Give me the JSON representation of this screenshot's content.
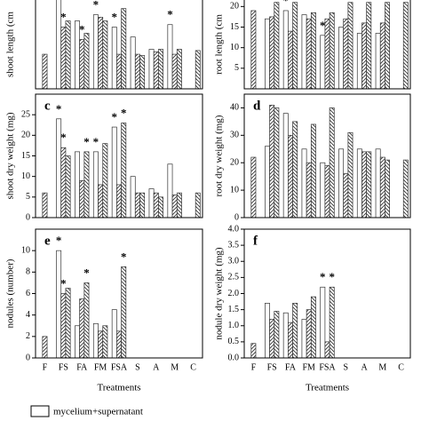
{
  "chart_data": [
    {
      "type": "bar",
      "y_label": "shoot length (cm",
      "ylim": [
        0,
        10
      ],
      "series": [
        {
          "name": "mycelium+supernatant",
          "pattern": "none",
          "values": [
            null,
            8,
            5.5,
            6,
            5,
            4.2,
            3.2,
            5.2,
            null
          ],
          "significance": [
            null,
            null,
            null,
            "*",
            "*",
            null,
            null,
            "*",
            null
          ]
        },
        {
          "pattern": "hatch-right",
          "values": [
            2.8,
            5,
            4,
            5.8,
            2.8,
            2.8,
            3,
            2.8,
            null
          ],
          "significance": [
            null,
            "*",
            "*",
            null,
            null,
            null,
            null,
            null,
            null
          ]
        },
        {
          "pattern": "hatch-left",
          "values": [
            null,
            5.5,
            4.5,
            5.5,
            6.5,
            2.7,
            3.2,
            3.2,
            3.1
          ],
          "significance": [
            null,
            null,
            null,
            null,
            null,
            null,
            null,
            null,
            null
          ]
        }
      ]
    },
    {
      "type": "bar",
      "y_label": "root length (cm",
      "ylim": [
        0,
        30
      ],
      "yticks": [
        5,
        10,
        15,
        20
      ],
      "series": [
        {
          "name": "mycelium+supernatant",
          "pattern": "none",
          "values": [
            null,
            17,
            19,
            18,
            13,
            15,
            13.5,
            13.5,
            null
          ],
          "significance": [
            null,
            null,
            "*",
            null,
            "*",
            null,
            null,
            null,
            null
          ]
        },
        {
          "pattern": "hatch-right",
          "values": [
            19,
            17.5,
            14,
            17,
            17,
            17,
            16,
            16,
            null
          ],
          "significance": [
            null,
            null,
            null,
            null,
            null,
            null,
            null,
            null,
            null
          ]
        },
        {
          "pattern": "hatch-left",
          "values": [
            null,
            21,
            21,
            18.5,
            18.5,
            21,
            21,
            21,
            21
          ],
          "significance": [
            null,
            null,
            null,
            null,
            null,
            null,
            null,
            null,
            null
          ]
        }
      ]
    },
    {
      "type": "bar",
      "panel": "c",
      "y_label": "shoot dry weight (mg)",
      "ylim": [
        0,
        30
      ],
      "yticks": [
        0,
        5,
        10,
        15,
        20,
        25
      ],
      "series": [
        {
          "name": "mycelium+supernatant",
          "pattern": "none",
          "values": [
            null,
            24,
            16,
            16,
            22,
            10,
            7,
            13,
            null
          ],
          "significance": [
            null,
            "*",
            null,
            "*",
            "*",
            null,
            null,
            null,
            null
          ]
        },
        {
          "pattern": "hatch-right",
          "values": [
            6,
            17,
            9,
            8,
            8,
            6,
            6,
            5.5,
            null
          ],
          "significance": [
            null,
            "*",
            null,
            null,
            null,
            null,
            null,
            null,
            null
          ]
        },
        {
          "pattern": "hatch-left",
          "values": [
            null,
            15,
            16,
            18,
            23,
            6,
            5,
            6,
            6
          ],
          "significance": [
            null,
            null,
            "*",
            null,
            "*",
            null,
            null,
            null,
            null
          ]
        }
      ]
    },
    {
      "type": "bar",
      "panel": "d",
      "y_label": "root dry weight (mg)",
      "ylim": [
        0,
        45
      ],
      "yticks": [
        0,
        10,
        20,
        30,
        40
      ],
      "series": [
        {
          "name": "mycelium+supernatant",
          "pattern": "none",
          "values": [
            null,
            26,
            38,
            25,
            20,
            25,
            25,
            25,
            null
          ],
          "significance": [
            null,
            null,
            null,
            null,
            null,
            null,
            null,
            null,
            null
          ]
        },
        {
          "pattern": "hatch-right",
          "values": [
            22,
            41,
            30,
            20,
            19,
            16,
            24,
            22,
            null
          ],
          "significance": [
            null,
            null,
            null,
            null,
            null,
            null,
            null,
            null,
            null
          ]
        },
        {
          "pattern": "hatch-left",
          "values": [
            null,
            40,
            35,
            34,
            40,
            31,
            24,
            21,
            21
          ],
          "significance": [
            null,
            null,
            null,
            null,
            null,
            null,
            null,
            null,
            null
          ]
        }
      ]
    },
    {
      "type": "bar",
      "panel": "e",
      "y_label": "nodules (number)",
      "x_label": "Treatments",
      "ylim": [
        0,
        12
      ],
      "yticks": [
        0,
        2,
        4,
        6,
        8,
        10
      ],
      "categories": [
        "F",
        "FS",
        "FA",
        "FM",
        "FSA",
        "S",
        "A",
        "M",
        "C"
      ],
      "series": [
        {
          "name": "mycelium+supernatant",
          "pattern": "none",
          "values": [
            null,
            10,
            3,
            3.2,
            4.5,
            null,
            null,
            null,
            null
          ],
          "significance": [
            null,
            "*",
            null,
            null,
            null,
            null,
            null,
            null,
            null
          ]
        },
        {
          "pattern": "hatch-right",
          "values": [
            2,
            6,
            5.5,
            2.5,
            2.5,
            null,
            null,
            null,
            null
          ],
          "significance": [
            null,
            "*",
            null,
            null,
            null,
            null,
            null,
            null,
            null
          ]
        },
        {
          "pattern": "hatch-left",
          "values": [
            null,
            6.5,
            7,
            3,
            8.5,
            null,
            null,
            null,
            null
          ],
          "significance": [
            null,
            null,
            "*",
            null,
            "*",
            null,
            null,
            null,
            null
          ]
        }
      ]
    },
    {
      "type": "bar",
      "panel": "f",
      "y_label": "nodule dry weight (mg)",
      "x_label": "Treatments",
      "ylim": [
        0,
        4
      ],
      "yticks": [
        {
          "value": 0,
          "label": "0.0"
        },
        {
          "value": 0.5,
          "label": "0.5"
        },
        {
          "value": 1,
          "label": "1.0"
        },
        {
          "value": 1.5,
          "label": "1.5"
        },
        {
          "value": 2,
          "label": "2.0"
        },
        {
          "value": 2.5,
          "label": "2.5"
        },
        {
          "value": 3,
          "label": "3.0"
        },
        {
          "value": 3.5,
          "label": "3.5"
        },
        {
          "value": 4,
          "label": "4.0"
        }
      ],
      "categories": [
        "F",
        "FS",
        "FA",
        "FM",
        "FSA",
        "S",
        "A",
        "M",
        "C"
      ],
      "series": [
        {
          "name": "mycelium+supernatant",
          "pattern": "none",
          "values": [
            null,
            1.7,
            1.4,
            1.2,
            2.2,
            null,
            null,
            null,
            null
          ],
          "significance": [
            null,
            null,
            null,
            null,
            "*",
            null,
            null,
            null,
            null
          ]
        },
        {
          "pattern": "hatch-right",
          "values": [
            0.45,
            1.2,
            1.1,
            1.5,
            0.5,
            null,
            null,
            null,
            null
          ],
          "significance": [
            null,
            null,
            null,
            null,
            null,
            null,
            null,
            null,
            null
          ]
        },
        {
          "pattern": "hatch-left",
          "values": [
            null,
            1.45,
            1.7,
            1.9,
            2.2,
            null,
            null,
            null,
            null
          ],
          "significance": [
            null,
            null,
            null,
            null,
            "*",
            null,
            null,
            null,
            null
          ]
        }
      ]
    }
  ]
}
